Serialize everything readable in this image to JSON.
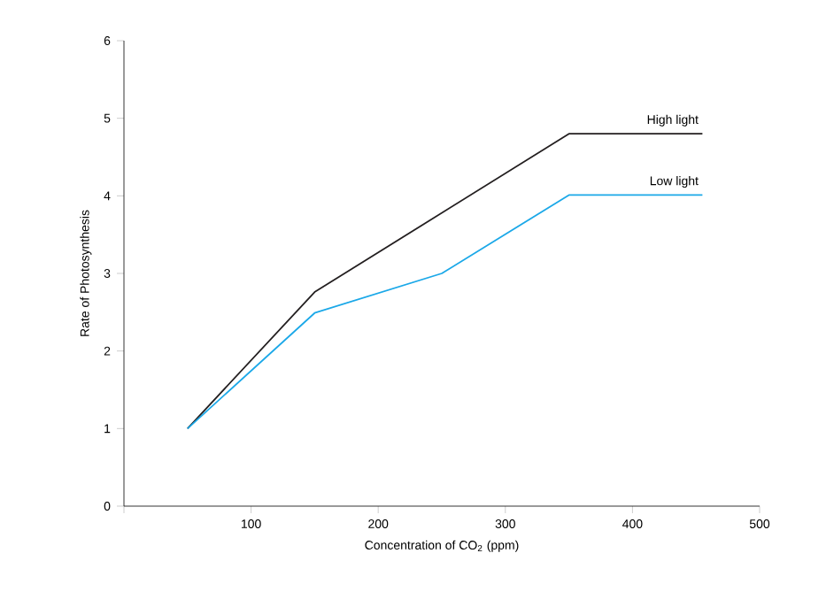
{
  "chart_data": {
    "type": "line",
    "xlabel": "Concentration of CO$_{2}$ (ppm)",
    "ylabel": "Rate of Photosynthesis",
    "series": [
      {
        "name": "High light",
        "color": "#231f20",
        "x": [
          50,
          150,
          350,
          455
        ],
        "values": [
          1,
          2.76,
          4.8,
          4.8
        ]
      },
      {
        "name": "Low light",
        "color": "#1ba8e8",
        "x": [
          50,
          150,
          250,
          350,
          455
        ],
        "values": [
          1,
          2.49,
          3.0,
          4.01,
          4.01
        ]
      }
    ],
    "xlim": [
      0,
      500
    ],
    "ylim": [
      0,
      6
    ],
    "xticks": [
      {
        "value": 0,
        "label": null
      },
      100,
      200,
      300,
      400,
      500
    ],
    "yticks": [
      0,
      1,
      2,
      3,
      4,
      5,
      6
    ],
    "grid": false,
    "legend": false,
    "marker": "none",
    "line_style": "solid"
  }
}
